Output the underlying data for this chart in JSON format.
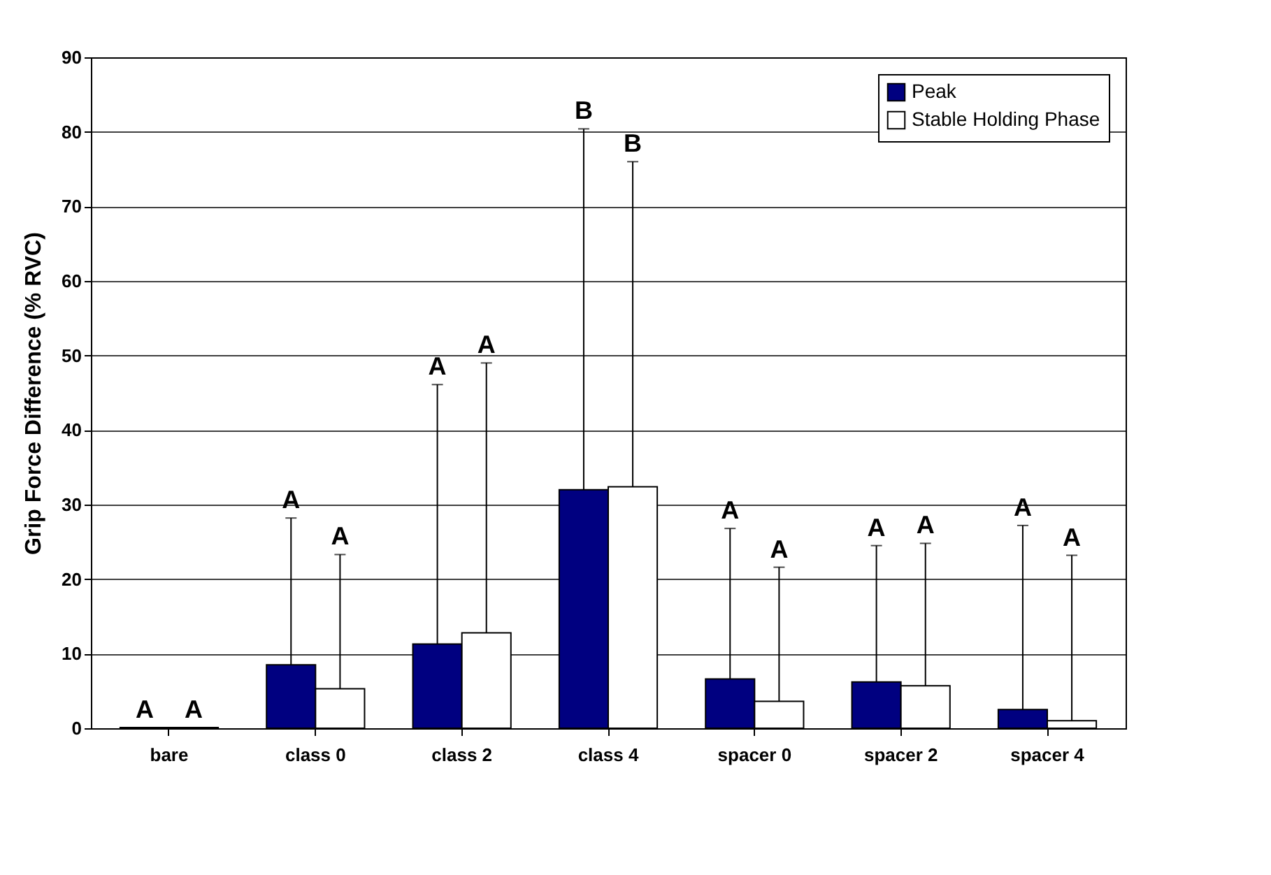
{
  "chart_data": {
    "type": "bar",
    "ylabel": "Grip Force Difference (% RVC)",
    "categories": [
      "bare",
      "class 0",
      "class 2",
      "class 4",
      "spacer 0",
      "spacer 2",
      "spacer 4"
    ],
    "series": [
      {
        "name": "Peak",
        "color": "#000080",
        "values": [
          0.1,
          8.5,
          11.3,
          32.0,
          6.6,
          6.2,
          2.5
        ],
        "errors": [
          null,
          [
            8.5,
            28.2
          ],
          [
            11.3,
            46.1
          ],
          [
            32.0,
            80.4
          ],
          [
            6.6,
            26.8
          ],
          [
            6.2,
            24.5
          ],
          [
            2.5,
            27.2
          ]
        ]
      },
      {
        "name": "Stable Holding Phase",
        "color": "#ffffff",
        "values": [
          0.1,
          5.3,
          12.8,
          32.4,
          3.6,
          5.7,
          1.0
        ],
        "errors": [
          null,
          [
            5.3,
            23.3
          ],
          [
            12.8,
            49.0
          ],
          [
            32.4,
            76.0
          ],
          [
            3.6,
            21.6
          ],
          [
            5.7,
            24.8
          ],
          [
            1.0,
            23.2
          ]
        ]
      }
    ],
    "annotations": [
      "A",
      "A",
      "A",
      "A",
      "A",
      "A",
      "B",
      "B",
      "A",
      "A",
      "A",
      "A",
      "A",
      "A"
    ],
    "ylim": [
      0,
      90
    ],
    "yticks": [
      0,
      10,
      20,
      30,
      40,
      50,
      60,
      70,
      80,
      90
    ],
    "grid": "y",
    "legend": "top right"
  }
}
